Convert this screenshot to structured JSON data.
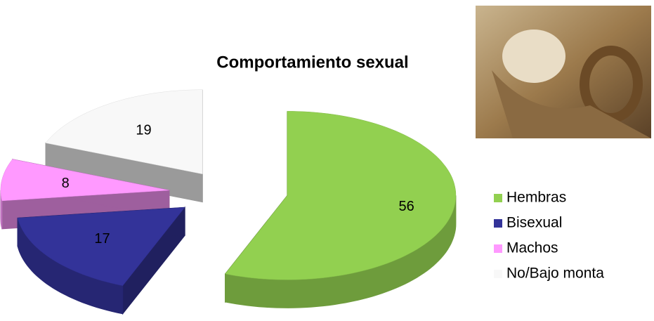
{
  "chart_data": {
    "type": "pie3d",
    "title": "Comportamiento sexual",
    "categories": [
      "Hembras",
      "Bisexual",
      "Machos",
      "No/Bajo monta"
    ],
    "values": [
      56,
      17,
      8,
      19
    ],
    "colors": [
      "#92d050",
      "#333399",
      "#ff99ff",
      "#f8f8f8"
    ],
    "legend": "right"
  }
}
